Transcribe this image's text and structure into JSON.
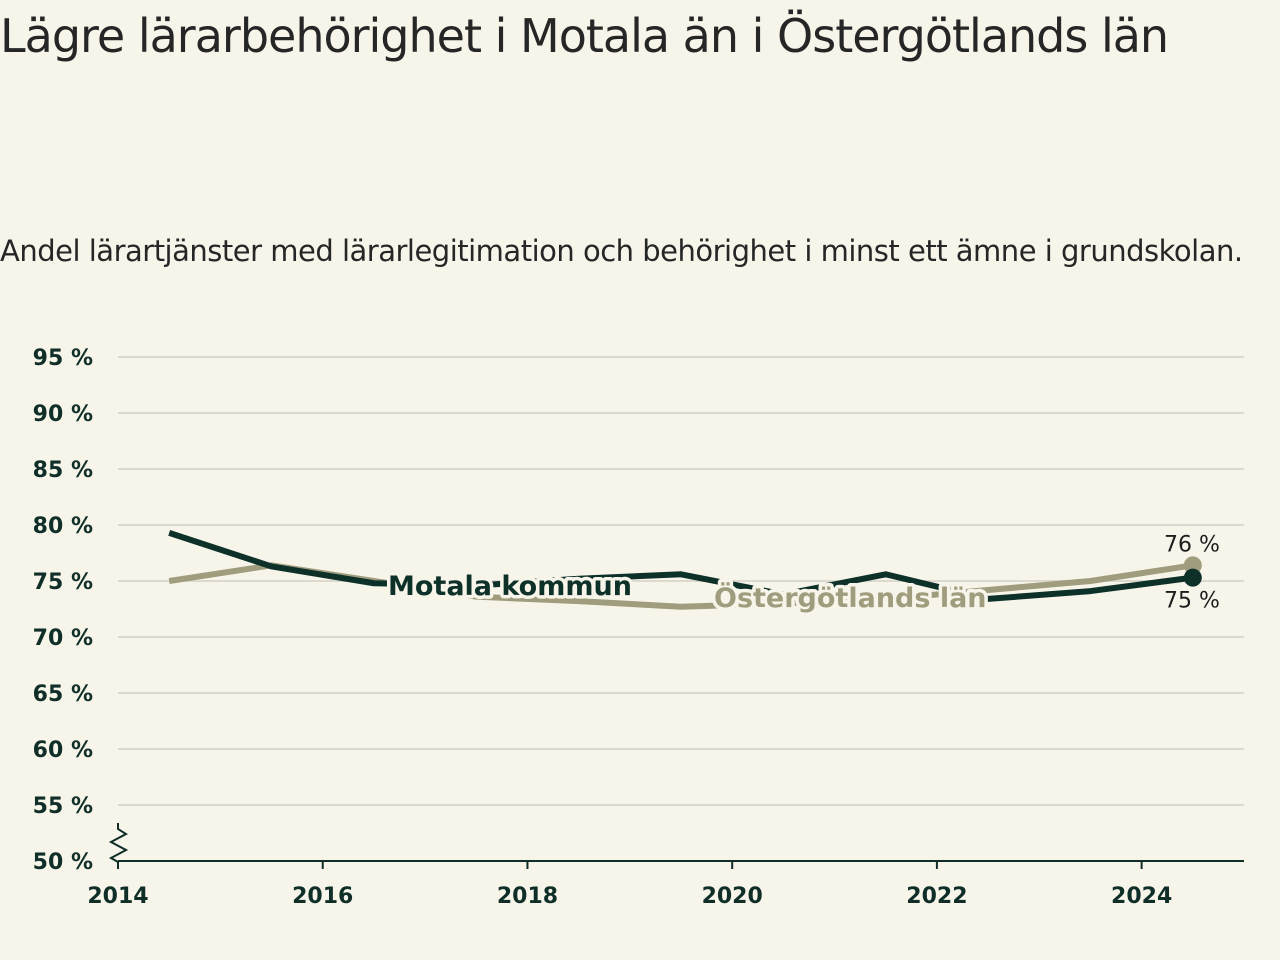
{
  "title": "Lägre lärarbehörighet i Motala än i Östergötlands län",
  "subtitle": "Andel lärartjänster med lärarlegitimation och behörighet i minst ett ämne i grundskolan.",
  "chart_data": {
    "type": "line",
    "x": [
      2014.5,
      2015.5,
      2016.5,
      2017.5,
      2018.5,
      2019.5,
      2020.5,
      2021.5,
      2022.5,
      2023.5,
      2024.5
    ],
    "xticks": [
      2014,
      2016,
      2018,
      2020,
      2022,
      2024
    ],
    "xlim": [
      2014,
      2025
    ],
    "ylim": [
      50,
      95
    ],
    "yticks": [
      50,
      55,
      60,
      65,
      70,
      75,
      80,
      85,
      90,
      95
    ],
    "ytick_labels": [
      "50 %",
      "55 %",
      "60 %",
      "65 %",
      "70 %",
      "75 %",
      "80 %",
      "85 %",
      "90 %",
      "95 %"
    ],
    "xtick_labels": [
      "2014",
      "2016",
      "2018",
      "2020",
      "2022",
      "2024"
    ],
    "axis_break": true,
    "grid": true,
    "series": [
      {
        "name": "Motala kommun",
        "color": "#0d3029",
        "values": [
          79.3,
          76.3,
          74.8,
          74.6,
          75.2,
          75.6,
          73.8,
          75.6,
          73.4,
          74.1,
          75.3
        ],
        "end_label": "75 %"
      },
      {
        "name": "Östergötlands län",
        "color": "#a09d7e",
        "values": [
          75.0,
          76.4,
          75.0,
          73.6,
          73.2,
          72.7,
          73.0,
          73.4,
          74.2,
          75.0,
          76.4
        ],
        "end_label": "76 %"
      }
    ]
  }
}
